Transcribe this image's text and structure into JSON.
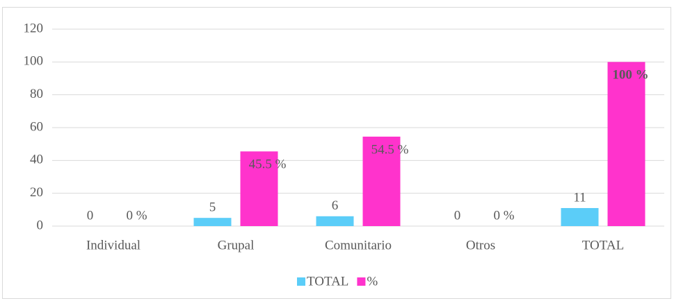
{
  "chart_data": {
    "type": "bar",
    "categories": [
      "Individual",
      "Grupal",
      "Comunitario",
      "Otros",
      "TOTAL"
    ],
    "series": [
      {
        "name": "TOTAL",
        "color": "#5bcdf8",
        "values": [
          0,
          5,
          6,
          0,
          11
        ]
      },
      {
        "name": "%",
        "color": "#ff33cc",
        "values": [
          0,
          45.5,
          54.5,
          0,
          100
        ],
        "value_labels": [
          "0 %",
          "45.5 %",
          "54.5 %",
          "0 %",
          "100 %"
        ]
      }
    ],
    "ylim": [
      0,
      120
    ],
    "yticks": [
      0,
      20,
      40,
      60,
      80,
      100,
      120
    ],
    "grid": true,
    "legend": "bottom"
  }
}
